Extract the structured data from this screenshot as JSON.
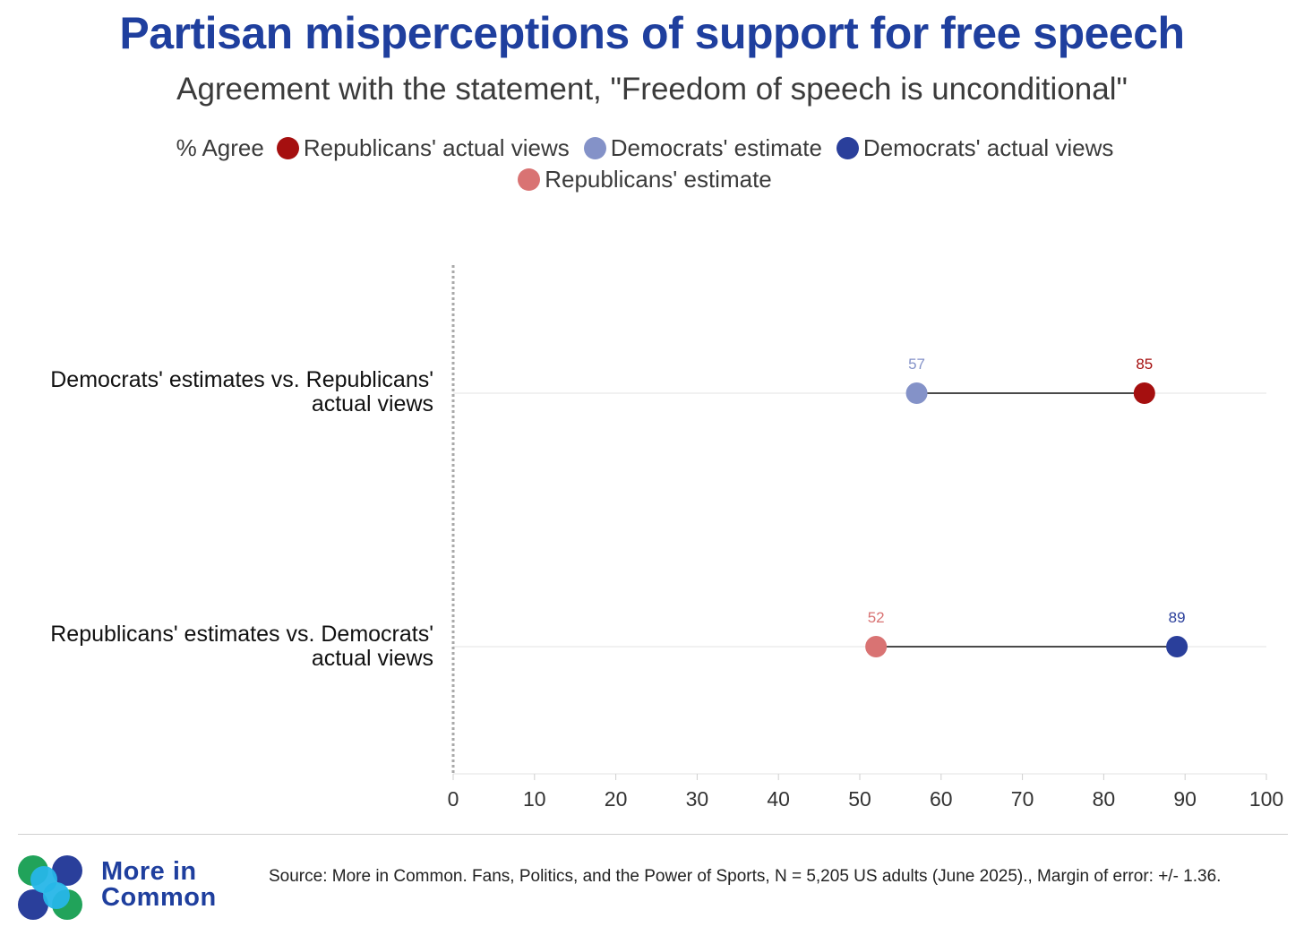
{
  "title": "Partisan misperceptions of support for free speech",
  "subtitle": "Agreement with the statement, \"Freedom of speech is unconditional\"",
  "legend": {
    "title": "% Agree",
    "items": [
      {
        "label": "Republicans' actual views",
        "color": "#a50f0f"
      },
      {
        "label": "Democrats' estimate",
        "color": "#8492c8"
      },
      {
        "label": "Democrats' actual views",
        "color": "#2a3f9b"
      },
      {
        "label": "Republicans' estimate",
        "color": "#d97373"
      }
    ]
  },
  "chart_data": {
    "type": "dumbbell",
    "xlim": [
      0,
      100
    ],
    "xticks": [
      0,
      10,
      20,
      30,
      40,
      50,
      60,
      70,
      80,
      90,
      100
    ],
    "rows": [
      {
        "label_line1": "Democrats' estimates vs. Republicans'",
        "label_line2": "actual views",
        "start": {
          "series": "Democrats' estimate",
          "value": 57,
          "color": "#8492c8"
        },
        "end": {
          "series": "Republicans' actual views",
          "value": 85,
          "color": "#a50f0f"
        }
      },
      {
        "label_line1": "Republicans' estimates vs. Democrats'",
        "label_line2": "actual views",
        "start": {
          "series": "Republicans' estimate",
          "value": 52,
          "color": "#d97373"
        },
        "end": {
          "series": "Democrats' actual views",
          "value": 89,
          "color": "#2a3f9b"
        }
      }
    ]
  },
  "footer": {
    "logo_line1": "More in",
    "logo_line2": "Common",
    "source": "Source: More in Common. Fans, Politics, and the Power of Sports, N = 5,205 US adults (June 2025)., Margin of error: +/- 1.36."
  }
}
